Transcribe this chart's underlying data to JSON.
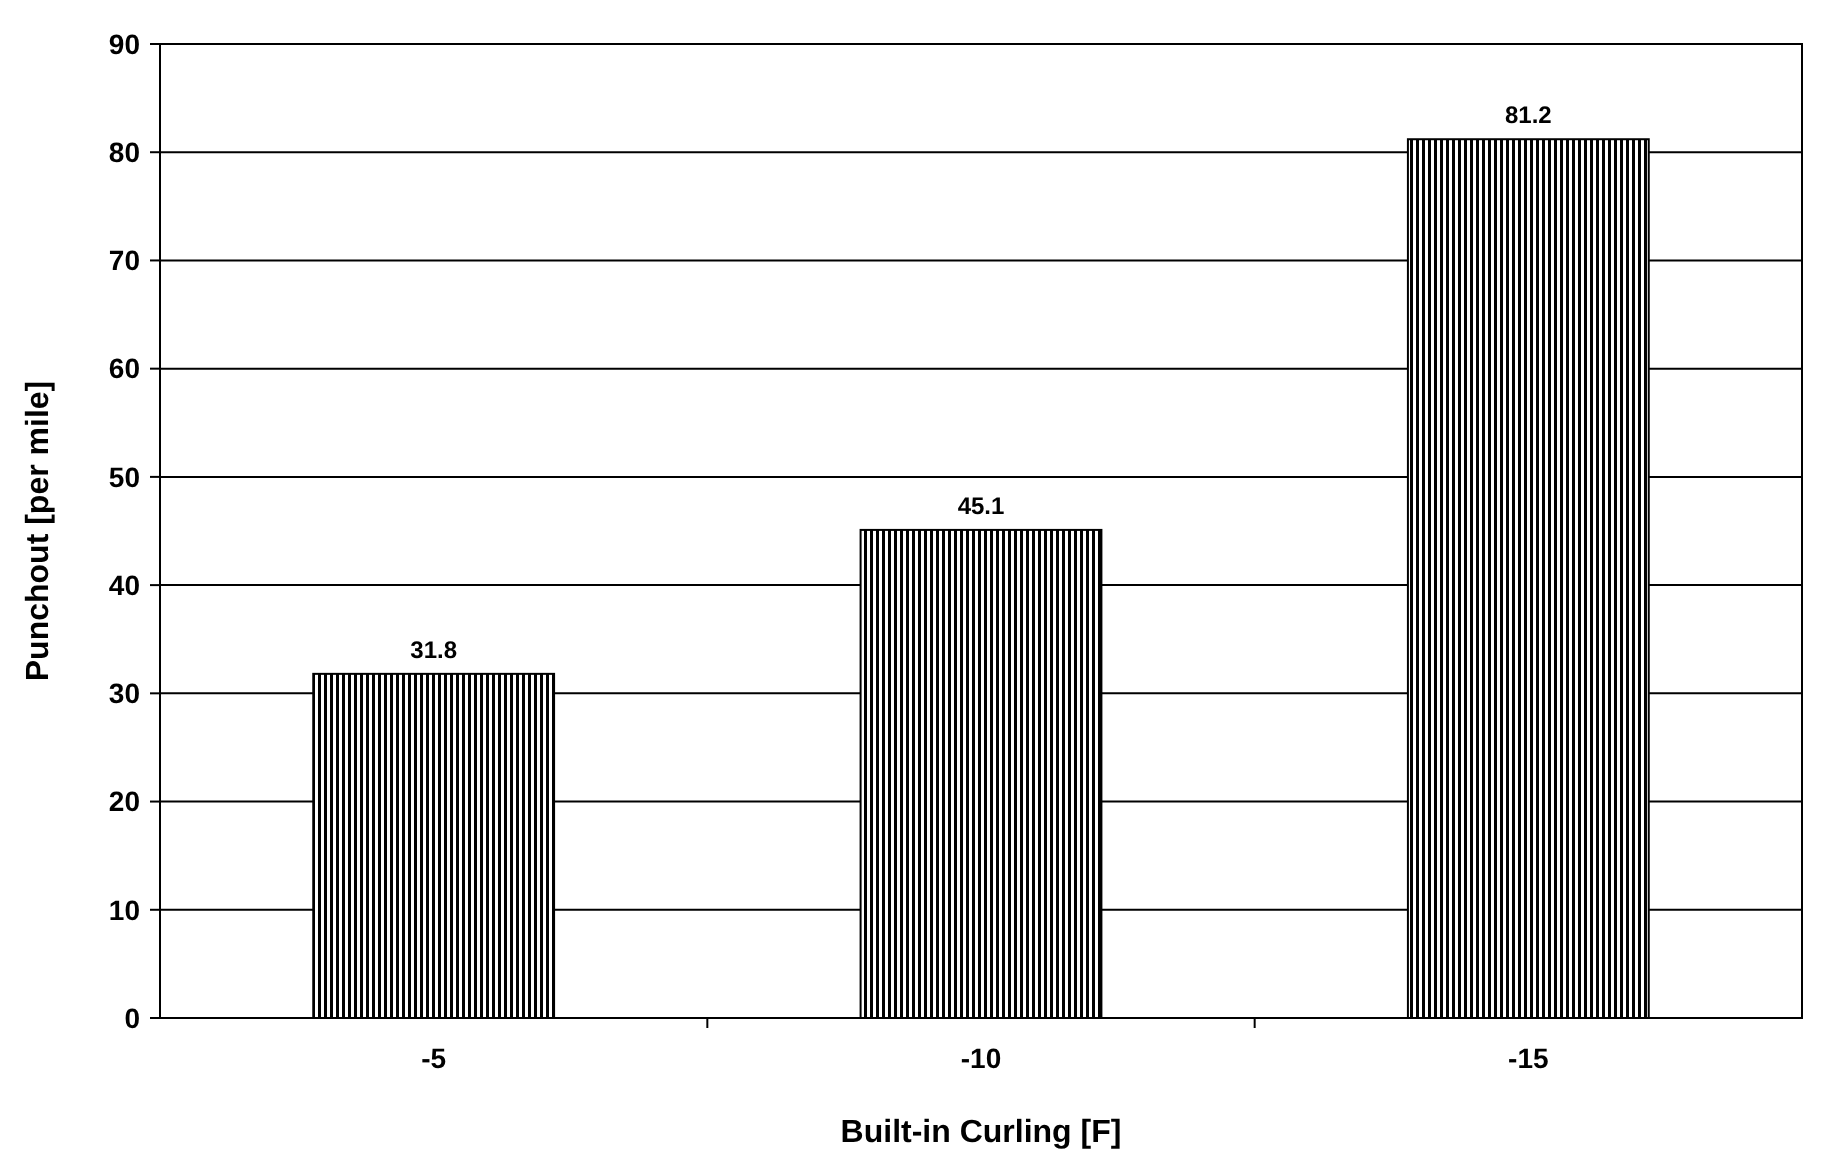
{
  "chart_data": {
    "type": "bar",
    "xlabel": "Built-in Curling [F]",
    "ylabel": "Punchout [per mile]",
    "categories": [
      "-5",
      "-10",
      "-15"
    ],
    "values": [
      31.8,
      45.1,
      81.2
    ],
    "color": "#000000",
    "data_labels": true,
    "ylim": [
      0,
      90
    ],
    "yticks": [
      0,
      10,
      20,
      30,
      40,
      50,
      60,
      70,
      80,
      90
    ],
    "grid": "y"
  }
}
